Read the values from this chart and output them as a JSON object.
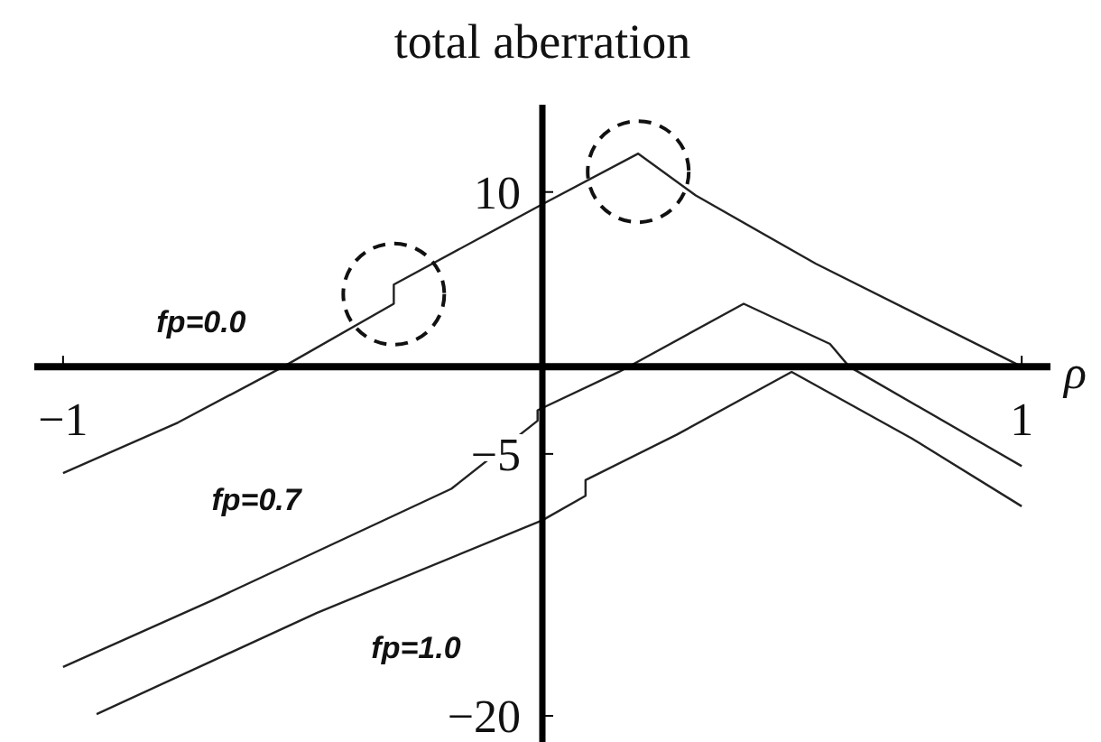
{
  "chart_data": {
    "type": "line",
    "title": "total aberration",
    "xlabel": "ρ",
    "xlim": [
      -1.06,
      1.06
    ],
    "ylim": [
      -21.5,
      15
    ],
    "xticks": [
      -1,
      1
    ],
    "yticks": [
      10,
      -5,
      -20
    ],
    "line_style": "solid",
    "marker": "none",
    "series": [
      {
        "name": "fp=0.0",
        "color": "#222222",
        "x": [
          -1.0,
          -0.76,
          -0.54,
          -0.31,
          -0.31,
          0.0,
          0.2,
          0.32,
          0.57,
          1.0
        ],
        "values": [
          -6.1,
          -3.2,
          0,
          3.6,
          4.7,
          9.3,
          12.2,
          9.8,
          5.9,
          0
        ]
      },
      {
        "name": "fp=0.7",
        "color": "#222222",
        "x": [
          -1.0,
          -0.69,
          -0.19,
          -0.01,
          -0.01,
          0.16,
          0.42,
          0.6,
          0.64,
          1.0
        ],
        "values": [
          -17.2,
          -13.4,
          -7.0,
          -3.1,
          -2.5,
          -0.3,
          3.6,
          1.3,
          0,
          -5.7
        ]
      },
      {
        "name": "fp=1.0",
        "color": "#222222",
        "x": [
          -0.93,
          -0.47,
          0.0,
          0.09,
          0.09,
          0.28,
          0.52,
          0.77,
          1.0
        ],
        "values": [
          -19.9,
          -14.1,
          -8.8,
          -7.4,
          -6.5,
          -3.9,
          -0.3,
          -4.1,
          -8.0
        ]
      }
    ]
  }
}
